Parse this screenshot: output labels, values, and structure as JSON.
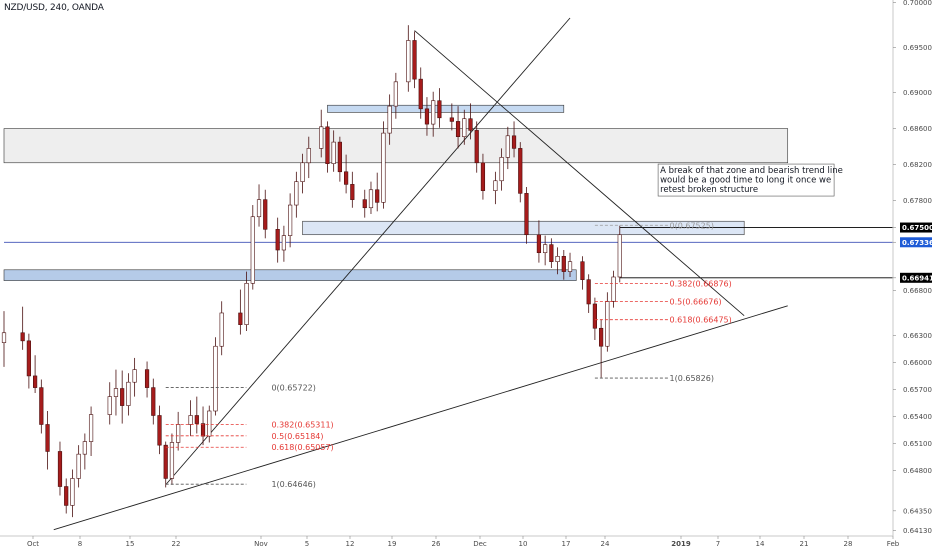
{
  "header": {
    "symbol_title": "NZD/USD, 240, OANDA"
  },
  "chart_data": {
    "type": "candlestick",
    "title": "NZD/USD, 240, OANDA",
    "xlabel": "",
    "ylabel": "",
    "ylim": [
      0.6407,
      0.7003
    ],
    "grid": false,
    "x_ticks": [
      "Oct",
      "8",
      "15",
      "22",
      "Nov",
      "5",
      "12",
      "19",
      "26",
      "Dec",
      "10",
      "17",
      "24",
      "2019",
      "7",
      "14",
      "21",
      "28",
      "Feb"
    ],
    "y_ticks": [
      "0.70000",
      "0.69500",
      "0.69000",
      "0.68600",
      "0.68200",
      "0.67800",
      "0.67500",
      "0.67336",
      "0.66941",
      "0.66800",
      "0.66300",
      "0.66000",
      "0.65700",
      "0.65400",
      "0.65100",
      "0.64800",
      "0.64350",
      "0.64130"
    ],
    "price_tags": [
      {
        "label": "0.67500",
        "price": 0.675,
        "style": "black"
      },
      {
        "label": "0.67336",
        "price": 0.67336,
        "style": "blue"
      },
      {
        "label": "0.66941",
        "price": 0.66941,
        "style": "black"
      }
    ],
    "horizontal_lines": [
      {
        "price": 0.675,
        "color": "#000000",
        "x_start": "2019-01-05"
      },
      {
        "price": 0.67336,
        "color": "#3f51b5",
        "x_start": "2018-09-28"
      },
      {
        "price": 0.66941,
        "color": "#000000",
        "x_start": "2019-01-05"
      }
    ],
    "zones": [
      {
        "name": "resistance",
        "x_start": "2018-09-28",
        "x_end": "2019-02-01",
        "y_low": 0.6822,
        "y_high": 0.686,
        "fill": "#eeeeee"
      },
      {
        "name": "top",
        "x_start": "2018-11-19",
        "x_end": "2018-12-27",
        "y_low": 0.6878,
        "y_high": 0.6886,
        "fill": "#c5d9f1"
      },
      {
        "name": "broken",
        "x_start": "2018-11-15",
        "x_end": "2019-01-25",
        "y_low": 0.6742,
        "y_high": 0.6757,
        "fill": "#dce6f5"
      },
      {
        "name": "support",
        "x_start": "2018-09-28",
        "x_end": "2018-12-29",
        "y_low": 0.6691,
        "y_high": 0.6703,
        "fill": "#b5cbe8"
      }
    ],
    "trend_lines": [
      {
        "from": [
          "2018-10-06",
          0.6414
        ],
        "to": [
          "2019-02-01",
          0.6663
        ]
      },
      {
        "from": [
          "2018-10-24",
          0.6464
        ],
        "to": [
          "2018-12-28",
          0.6983
        ]
      },
      {
        "from": [
          "2018-12-03",
          0.6969
        ],
        "to": [
          "2019-01-25",
          0.6652
        ]
      }
    ],
    "fib_retracements": [
      {
        "x_start": "2018-10-24",
        "x_end": "2018-11-05",
        "label_x": "2018-11-10",
        "levels": [
          {
            "label": "0(0.65722)",
            "price": 0.65722,
            "color": "#555555"
          },
          {
            "label": "0.382(0.65311)",
            "price": 0.65311,
            "color": "#e53935"
          },
          {
            "label": "0.5(0.65184)",
            "price": 0.65184,
            "color": "#e53935"
          },
          {
            "label": "0.618(0.65057)",
            "price": 0.65057,
            "color": "#e53935"
          },
          {
            "label": "1(0.64646)",
            "price": 0.64646,
            "color": "#555555"
          }
        ]
      },
      {
        "x_start": "2019-01-01",
        "x_end": "2019-01-12",
        "label_x": "2019-01-13",
        "levels": [
          {
            "label": "0(0.67525)",
            "price": 0.67525,
            "color": "#999999"
          },
          {
            "label": "0.382(0.66876)",
            "price": 0.66876,
            "color": "#e53935"
          },
          {
            "label": "0.5(0.66676)",
            "price": 0.66676,
            "color": "#e53935"
          },
          {
            "label": "0.618(0.66475)",
            "price": 0.66475,
            "color": "#e53935"
          },
          {
            "label": "1(0.65826)",
            "price": 0.65826,
            "color": "#555555"
          }
        ]
      }
    ],
    "annotation": {
      "lines": [
        "A break of that zone and bearish trend line",
        "would be a good time to long it once we",
        " retest broken structure"
      ],
      "anchor": [
        "2019-01-11",
        0.6795
      ]
    },
    "candles": [
      [
        "2018-09-28",
        0.6622,
        0.6657,
        0.6595,
        0.6633
      ],
      [
        "2018-10-01",
        0.6633,
        0.6662,
        0.6614,
        0.6624
      ],
      [
        "2018-10-02",
        0.6624,
        0.6632,
        0.6571,
        0.6585
      ],
      [
        "2018-10-03",
        0.6585,
        0.6608,
        0.6566,
        0.6572
      ],
      [
        "2018-10-04",
        0.6572,
        0.6581,
        0.6521,
        0.6531
      ],
      [
        "2018-10-05",
        0.6531,
        0.6546,
        0.6481,
        0.6501
      ],
      [
        "2018-10-07",
        0.6501,
        0.6512,
        0.6452,
        0.6462
      ],
      [
        "2018-10-08",
        0.6462,
        0.6471,
        0.6432,
        0.6441
      ],
      [
        "2018-10-09",
        0.6441,
        0.6481,
        0.6428,
        0.6471
      ],
      [
        "2018-10-10",
        0.6471,
        0.6508,
        0.6461,
        0.6498
      ],
      [
        "2018-10-11",
        0.6498,
        0.6521,
        0.6481,
        0.6512
      ],
      [
        "2018-10-12",
        0.6512,
        0.6551,
        0.6496,
        0.6542
      ],
      [
        "2018-10-15",
        0.6542,
        0.6578,
        0.6531,
        0.6562
      ],
      [
        "2018-10-16",
        0.6562,
        0.6592,
        0.6541,
        0.6571
      ],
      [
        "2018-10-17",
        0.6571,
        0.6591,
        0.6532,
        0.6552
      ],
      [
        "2018-10-18",
        0.6552,
        0.6588,
        0.6541,
        0.6578
      ],
      [
        "2018-10-19",
        0.6578,
        0.6605,
        0.6562,
        0.6592
      ],
      [
        "2018-10-21",
        0.6592,
        0.6601,
        0.6561,
        0.6572
      ],
      [
        "2018-10-22",
        0.6572,
        0.6582,
        0.6531,
        0.6541
      ],
      [
        "2018-10-23",
        0.6541,
        0.6552,
        0.6498,
        0.6508
      ],
      [
        "2018-10-24",
        0.6508,
        0.6512,
        0.6461,
        0.6471
      ],
      [
        "2018-10-25",
        0.6471,
        0.6521,
        0.6464,
        0.6511
      ],
      [
        "2018-10-26",
        0.6511,
        0.6545,
        0.6502,
        0.6531
      ],
      [
        "2018-10-28",
        0.6531,
        0.6558,
        0.6518,
        0.6541
      ],
      [
        "2018-10-29",
        0.6541,
        0.6562,
        0.6521,
        0.6532
      ],
      [
        "2018-10-30",
        0.6532,
        0.6551,
        0.6508,
        0.6518
      ],
      [
        "2018-10-31",
        0.6518,
        0.6552,
        0.6511,
        0.6546
      ],
      [
        "2018-11-01",
        0.6546,
        0.6628,
        0.6541,
        0.6618
      ],
      [
        "2018-11-02",
        0.6618,
        0.6668,
        0.6608,
        0.6655
      ],
      [
        "2018-11-05",
        0.6655,
        0.6681,
        0.6631,
        0.6642
      ],
      [
        "2018-11-06",
        0.6642,
        0.6701,
        0.6635,
        0.6688
      ],
      [
        "2018-11-07",
        0.6688,
        0.6775,
        0.6681,
        0.6762
      ],
      [
        "2018-11-08",
        0.6762,
        0.6798,
        0.6751,
        0.6781
      ],
      [
        "2018-11-09",
        0.6781,
        0.6792,
        0.6738,
        0.6748
      ],
      [
        "2018-11-11",
        0.6748,
        0.6761,
        0.6711,
        0.6725
      ],
      [
        "2018-11-12",
        0.6725,
        0.6752,
        0.6712,
        0.6741
      ],
      [
        "2018-11-13",
        0.6741,
        0.6788,
        0.6728,
        0.6775
      ],
      [
        "2018-11-14",
        0.6775,
        0.6812,
        0.6761,
        0.6801
      ],
      [
        "2018-11-15",
        0.6801,
        0.6832,
        0.6788,
        0.6822
      ],
      [
        "2018-11-16",
        0.6822,
        0.6851,
        0.6805,
        0.6838
      ],
      [
        "2018-11-18",
        0.6838,
        0.6881,
        0.6828,
        0.6862
      ],
      [
        "2018-11-19",
        0.6862,
        0.6868,
        0.6811,
        0.6821
      ],
      [
        "2018-11-20",
        0.6821,
        0.6858,
        0.6812,
        0.6845
      ],
      [
        "2018-11-21",
        0.6845,
        0.6851,
        0.6801,
        0.6812
      ],
      [
        "2018-11-22",
        0.6812,
        0.6831,
        0.6788,
        0.6798
      ],
      [
        "2018-11-23",
        0.6798,
        0.6812,
        0.6772,
        0.6781
      ],
      [
        "2018-11-25",
        0.6781,
        0.6792,
        0.6761,
        0.6772
      ],
      [
        "2018-11-26",
        0.6772,
        0.6801,
        0.6765,
        0.6792
      ],
      [
        "2018-11-27",
        0.6792,
        0.6811,
        0.6768,
        0.6778
      ],
      [
        "2018-11-28",
        0.6778,
        0.6868,
        0.6771,
        0.6855
      ],
      [
        "2018-11-29",
        0.6855,
        0.6898,
        0.6842,
        0.6885
      ],
      [
        "2018-11-30",
        0.6885,
        0.6922,
        0.6871,
        0.6912
      ],
      [
        "2018-12-02",
        0.6912,
        0.6975,
        0.6901,
        0.6958
      ],
      [
        "2018-12-03",
        0.6958,
        0.6968,
        0.6905,
        0.6915
      ],
      [
        "2018-12-04",
        0.6915,
        0.6928,
        0.6871,
        0.6882
      ],
      [
        "2018-12-05",
        0.6882,
        0.6895,
        0.6852,
        0.6865
      ],
      [
        "2018-12-06",
        0.6865,
        0.6901,
        0.6851,
        0.6891
      ],
      [
        "2018-12-07",
        0.6891,
        0.6905,
        0.6861,
        0.6872
      ],
      [
        "2018-12-09",
        0.6872,
        0.6888,
        0.6858,
        0.6868
      ],
      [
        "2018-12-10",
        0.6868,
        0.6885,
        0.6838,
        0.6851
      ],
      [
        "2018-12-11",
        0.6851,
        0.6881,
        0.6842,
        0.6871
      ],
      [
        "2018-12-12",
        0.6871,
        0.6888,
        0.6848,
        0.6858
      ],
      [
        "2018-12-13",
        0.6858,
        0.6868,
        0.6811,
        0.6822
      ],
      [
        "2018-12-14",
        0.6822,
        0.6832,
        0.6781,
        0.6791
      ],
      [
        "2018-12-16",
        0.6791,
        0.6812,
        0.6776,
        0.6802
      ],
      [
        "2018-12-17",
        0.6802,
        0.6838,
        0.6791,
        0.6828
      ],
      [
        "2018-12-18",
        0.6828,
        0.6862,
        0.6815,
        0.6852
      ],
      [
        "2018-12-19",
        0.6852,
        0.6868,
        0.6828,
        0.6838
      ],
      [
        "2018-12-20",
        0.6838,
        0.6845,
        0.6778,
        0.6788
      ],
      [
        "2018-12-21",
        0.6788,
        0.6795,
        0.6732,
        0.6742
      ],
      [
        "2018-12-23",
        0.6742,
        0.6758,
        0.6711,
        0.6722
      ],
      [
        "2018-12-24",
        0.6722,
        0.6741,
        0.6708,
        0.6731
      ],
      [
        "2018-12-25",
        0.6731,
        0.6738,
        0.6705,
        0.6712
      ],
      [
        "2018-12-26",
        0.6712,
        0.6728,
        0.6698,
        0.6718
      ],
      [
        "2018-12-27",
        0.6718,
        0.6725,
        0.6692,
        0.6701
      ],
      [
        "2018-12-28",
        0.6701,
        0.6722,
        0.6695,
        0.6712
      ],
      [
        "2018-12-30",
        0.6712,
        0.6718,
        0.6681,
        0.6692
      ],
      [
        "2018-12-31",
        0.6692,
        0.6698,
        0.6655,
        0.6665
      ],
      [
        "2019-01-01",
        0.6665,
        0.6672,
        0.6625,
        0.6638
      ],
      [
        "2019-01-02",
        0.6638,
        0.6648,
        0.6583,
        0.6618
      ],
      [
        "2019-01-03",
        0.6618,
        0.6678,
        0.6612,
        0.6668
      ],
      [
        "2019-01-04",
        0.6668,
        0.6702,
        0.6661,
        0.6695
      ],
      [
        "2019-01-05",
        0.6695,
        0.6752,
        0.6689,
        0.6742
      ]
    ]
  }
}
